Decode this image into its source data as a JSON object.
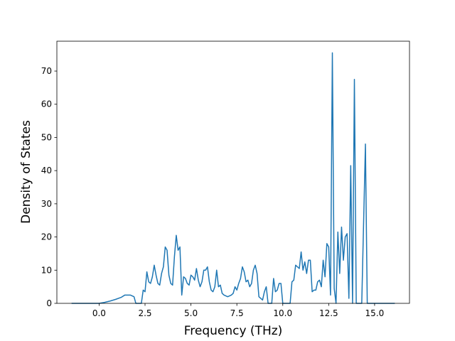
{
  "chart_data": {
    "type": "line",
    "title": "",
    "xlabel": "Frequency (THz)",
    "ylabel": "Density of States",
    "xlim": [
      -2.3,
      16.9
    ],
    "ylim": [
      0,
      79
    ],
    "xticks": [
      0.0,
      2.5,
      5.0,
      7.5,
      10.0,
      12.5,
      15.0
    ],
    "xtick_labels": [
      "0.0",
      "2.5",
      "5.0",
      "7.5",
      "10.0",
      "12.5",
      "15.0"
    ],
    "yticks": [
      0,
      10,
      20,
      30,
      40,
      50,
      60,
      70
    ],
    "ytick_labels": [
      "0",
      "10",
      "20",
      "30",
      "40",
      "50",
      "60",
      "70"
    ],
    "grid": false,
    "legend": "none",
    "line_color": "#1f77b4",
    "series": [
      {
        "x": [
          -1.5,
          -1.0,
          -0.5,
          0.0,
          0.3,
          0.6,
          0.9,
          1.2,
          1.4,
          1.5,
          1.7,
          1.9,
          2.0,
          2.1,
          2.3,
          2.4,
          2.5,
          2.6,
          2.7,
          2.8,
          2.9,
          3.0,
          3.1,
          3.2,
          3.3,
          3.4,
          3.5,
          3.6,
          3.7,
          3.8,
          3.9,
          4.0,
          4.1,
          4.2,
          4.3,
          4.4,
          4.5,
          4.6,
          4.7,
          4.8,
          4.9,
          5.0,
          5.1,
          5.2,
          5.3,
          5.4,
          5.5,
          5.6,
          5.7,
          5.8,
          5.9,
          6.0,
          6.1,
          6.2,
          6.3,
          6.4,
          6.5,
          6.6,
          6.7,
          6.8,
          7.0,
          7.2,
          7.3,
          7.4,
          7.5,
          7.6,
          7.7,
          7.8,
          7.9,
          8.0,
          8.1,
          8.2,
          8.3,
          8.4,
          8.5,
          8.6,
          8.7,
          8.8,
          8.9,
          9.0,
          9.1,
          9.2,
          9.3,
          9.4,
          9.5,
          9.6,
          9.7,
          9.8,
          9.9,
          10.0,
          10.2,
          10.3,
          10.4,
          10.5,
          10.6,
          10.7,
          10.8,
          10.9,
          11.0,
          11.1,
          11.2,
          11.3,
          11.4,
          11.5,
          11.6,
          11.7,
          11.8,
          11.9,
          12.0,
          12.1,
          12.2,
          12.3,
          12.4,
          12.5,
          12.6,
          12.7,
          12.8,
          12.9,
          13.0,
          13.1,
          13.2,
          13.3,
          13.4,
          13.5,
          13.6,
          13.7,
          13.8,
          13.9,
          14.0,
          14.1,
          14.3,
          14.5,
          14.6,
          14.7,
          15.0,
          16.1
        ],
        "y": [
          0,
          0,
          0,
          0,
          0.3,
          0.7,
          1.2,
          1.8,
          2.5,
          2.5,
          2.5,
          2.0,
          0,
          0,
          0,
          4.0,
          3.5,
          9.5,
          6.5,
          6.0,
          8.0,
          11.5,
          8.5,
          6.0,
          5.5,
          9.0,
          11.0,
          17.0,
          16.0,
          8.5,
          6.0,
          5.5,
          14.0,
          20.5,
          16.0,
          17.0,
          2.5,
          8.0,
          7.5,
          6.0,
          5.5,
          8.5,
          8.0,
          7.0,
          10.5,
          7.0,
          5.0,
          6.5,
          10.0,
          10.0,
          11.0,
          6.5,
          4.0,
          3.5,
          5.0,
          10.0,
          5.0,
          5.5,
          3.0,
          2.5,
          2.0,
          2.5,
          3.0,
          5.0,
          4.0,
          6.0,
          7.5,
          11.0,
          9.5,
          6.5,
          7.0,
          5.0,
          6.0,
          10.0,
          11.5,
          9.0,
          2.0,
          1.5,
          1.0,
          3.5,
          5.0,
          0,
          0,
          0,
          7.5,
          3.5,
          4.0,
          6.0,
          6.0,
          0,
          0,
          0,
          0,
          6.5,
          7.0,
          11.5,
          11.0,
          10.5,
          15.5,
          10.0,
          12.5,
          9.0,
          13.0,
          13.0,
          3.5,
          4.0,
          4.0,
          6.5,
          7.0,
          5.0,
          13.0,
          8.0,
          18.0,
          17.0,
          2.5,
          75.5,
          4.5,
          0,
          21.5,
          9.0,
          23.0,
          13.0,
          20.0,
          21.0,
          1.5,
          41.5,
          0,
          67.5,
          0,
          0,
          0,
          48.0,
          0,
          0,
          0,
          0
        ]
      }
    ]
  }
}
